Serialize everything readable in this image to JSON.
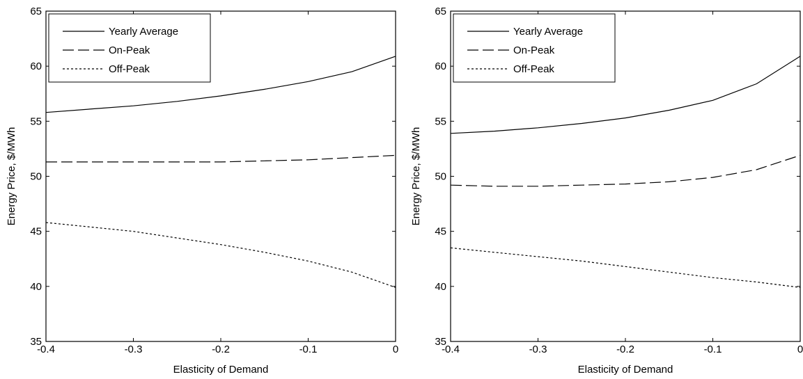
{
  "chart_data": [
    {
      "type": "line",
      "title": "",
      "xlabel": "Elasticity of Demand",
      "ylabel": "Energy Price, $/MWh",
      "xlim": [
        -0.4,
        0
      ],
      "ylim": [
        35,
        65
      ],
      "xticks": [
        -0.4,
        -0.3,
        -0.2,
        -0.1,
        0
      ],
      "xtick_labels": [
        "-0.4",
        "-0.3",
        "-0.2",
        "-0.1",
        "0"
      ],
      "yticks": [
        35,
        40,
        45,
        50,
        55,
        60,
        65
      ],
      "ytick_labels": [
        "35",
        "40",
        "45",
        "50",
        "55",
        "60",
        "65"
      ],
      "grid": false,
      "legend_position": "top-left",
      "x": [
        -0.4,
        -0.35,
        -0.3,
        -0.25,
        -0.2,
        -0.15,
        -0.1,
        -0.05,
        0
      ],
      "series": [
        {
          "name": "Yearly Average",
          "style": "solid",
          "values": [
            55.8,
            56.1,
            56.4,
            56.8,
            57.3,
            57.9,
            58.6,
            59.5,
            60.9
          ]
        },
        {
          "name": "On-Peak",
          "style": "dashed",
          "values": [
            51.3,
            51.3,
            51.3,
            51.3,
            51.3,
            51.4,
            51.5,
            51.7,
            51.9
          ]
        },
        {
          "name": "Off-Peak",
          "style": "dotted",
          "values": [
            45.8,
            45.4,
            45.0,
            44.4,
            43.8,
            43.1,
            42.3,
            41.3,
            39.9
          ]
        }
      ]
    },
    {
      "type": "line",
      "title": "",
      "xlabel": "Elasticity of Demand",
      "ylabel": "Energy Price, $/MWh",
      "xlim": [
        -0.4,
        0
      ],
      "ylim": [
        35,
        65
      ],
      "xticks": [
        -0.4,
        -0.3,
        -0.2,
        -0.1,
        0
      ],
      "xtick_labels": [
        "-0.4",
        "-0.3",
        "-0.2",
        "-0.1",
        "0"
      ],
      "yticks": [
        35,
        40,
        45,
        50,
        55,
        60,
        65
      ],
      "ytick_labels": [
        "35",
        "40",
        "45",
        "50",
        "55",
        "60",
        "65"
      ],
      "grid": false,
      "legend_position": "top-left",
      "x": [
        -0.4,
        -0.35,
        -0.3,
        -0.25,
        -0.2,
        -0.15,
        -0.1,
        -0.05,
        0
      ],
      "series": [
        {
          "name": "Yearly Average",
          "style": "solid",
          "values": [
            53.9,
            54.1,
            54.4,
            54.8,
            55.3,
            56.0,
            56.9,
            58.4,
            60.9
          ]
        },
        {
          "name": "On-Peak",
          "style": "dashed",
          "values": [
            49.2,
            49.1,
            49.1,
            49.2,
            49.3,
            49.5,
            49.9,
            50.6,
            51.9
          ]
        },
        {
          "name": "Off-Peak",
          "style": "dotted",
          "values": [
            43.5,
            43.1,
            42.7,
            42.3,
            41.8,
            41.3,
            40.8,
            40.4,
            39.9
          ]
        }
      ]
    }
  ]
}
